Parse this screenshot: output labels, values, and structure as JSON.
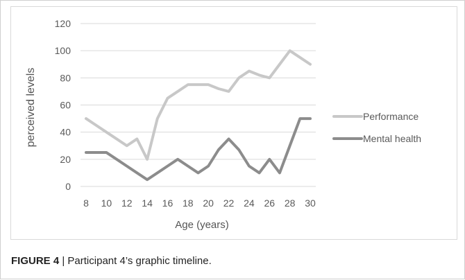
{
  "chart_data": {
    "type": "line",
    "x": [
      8,
      9,
      10,
      11,
      12,
      13,
      14,
      15,
      16,
      17,
      18,
      19,
      20,
      21,
      22,
      23,
      24,
      25,
      26,
      27,
      28,
      29,
      30
    ],
    "series": [
      {
        "name": "Performance",
        "color": "#c8c8c8",
        "values": [
          50,
          45,
          40,
          35,
          30,
          35,
          20,
          50,
          65,
          70,
          75,
          75,
          75,
          72,
          70,
          80,
          85,
          82,
          80,
          90,
          100,
          95,
          90
        ]
      },
      {
        "name": "Mental health",
        "color": "#8c8c8c",
        "values": [
          25,
          25,
          25,
          20,
          15,
          10,
          5,
          10,
          15,
          20,
          15,
          10,
          15,
          27,
          35,
          27,
          15,
          10,
          20,
          10,
          30,
          50,
          50
        ]
      }
    ],
    "xlabel": "Age (years)",
    "ylabel": "perceived levels",
    "ylim": [
      0,
      120
    ],
    "y_ticks": [
      "0",
      "20",
      "40",
      "60",
      "80",
      "100",
      "120"
    ],
    "x_ticks": [
      "8",
      "10",
      "12",
      "14",
      "16",
      "18",
      "20",
      "22",
      "24",
      "26",
      "28",
      "30"
    ],
    "grid": true,
    "legend": "right"
  },
  "caption": {
    "label": "FIGURE 4",
    "separator": " | ",
    "text": "Participant 4’s graphic timeline."
  }
}
